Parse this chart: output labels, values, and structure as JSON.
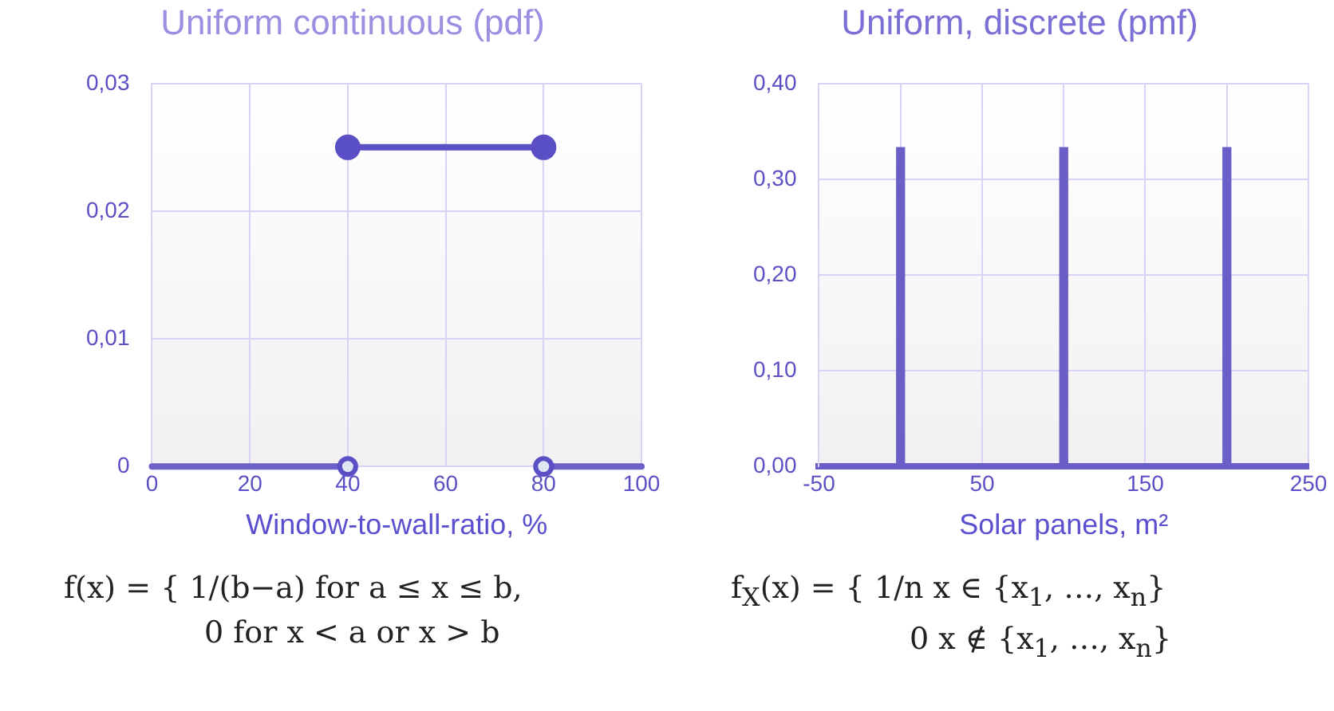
{
  "chart_data": [
    {
      "type": "line",
      "title": "Uniform continuous (pdf)",
      "xlabel": "Window-to-wall-ratio, %",
      "xlim": [
        0,
        100
      ],
      "xticks": [
        0,
        20,
        40,
        60,
        80,
        100
      ],
      "ylim": [
        0,
        0.03
      ],
      "yticks": [
        0,
        {
          "value": 0.01,
          "label": "0,01"
        },
        {
          "value": 0.02,
          "label": "0,02"
        },
        {
          "value": 0.03,
          "label": "0,03"
        }
      ],
      "grid": true,
      "legend": false,
      "series": [
        {
          "type": "line",
          "x": [
            40,
            80
          ],
          "values": [
            0.025,
            0.025
          ],
          "color": "#5a4fc4",
          "marker": "circle"
        },
        {
          "type": "line",
          "x": [
            0,
            40
          ],
          "values": [
            0,
            0
          ],
          "color": "#6a60c8",
          "marker": "none"
        },
        {
          "type": "line",
          "x": [
            80,
            100
          ],
          "values": [
            0,
            0
          ],
          "color": "#6a60c8",
          "marker": "none"
        },
        {
          "type": "scatter",
          "x": [
            40,
            80
          ],
          "values": [
            0,
            0
          ],
          "color": "#5a4fc4",
          "marker": "circle"
        }
      ],
      "annotations": [
        "f(x) = { 1/(b−a)   for a ≤ x ≤ b,",
        "0   for x < a or x > b"
      ]
    },
    {
      "type": "bar",
      "title": "Uniform, discrete (pmf)",
      "xlabel": "Solar panels, m²",
      "xlim": [
        -50,
        250
      ],
      "xticks": [
        -50,
        {
          "value": 0,
          "label": null
        },
        50,
        {
          "value": 100,
          "label": null
        },
        150,
        {
          "value": 200,
          "label": null
        },
        250
      ],
      "ylim": [
        0,
        0.4
      ],
      "yticks": [
        {
          "value": 0,
          "label": "0,00"
        },
        {
          "value": 0.1,
          "label": "0,10"
        },
        {
          "value": 0.2,
          "label": "0,20"
        },
        {
          "value": 0.3,
          "label": "0,30"
        },
        {
          "value": 0.4,
          "label": "0,40"
        }
      ],
      "grid": true,
      "legend": false,
      "series": [
        {
          "x": [
            0,
            100,
            200
          ],
          "values": [
            0.333,
            0.333,
            0.333
          ],
          "color": "#6a5fc6"
        }
      ],
      "annotations": [
        "f$_{X}$(x) = { 1/n   x ∈ {x$_{1}$, …, x$_{n}$}",
        "0   x ∉ {x$_{1}$, …, x$_{n}$}"
      ]
    }
  ]
}
